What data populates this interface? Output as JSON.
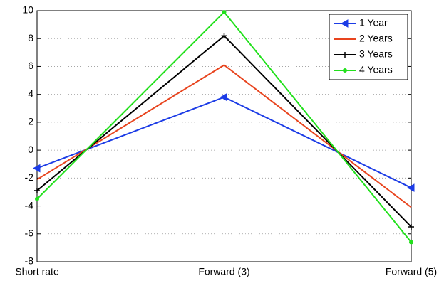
{
  "chart_data": {
    "type": "line",
    "categories": [
      "Short rate",
      "Forward (3)",
      "Forward (5)"
    ],
    "series": [
      {
        "name": "1 Year",
        "color": "#1c3ce6",
        "marker": "triangle-left",
        "values": [
          -1.3,
          3.8,
          -2.7
        ]
      },
      {
        "name": "2 Years",
        "color": "#e8441e",
        "marker": "none",
        "values": [
          -2.1,
          6.1,
          -4.1
        ]
      },
      {
        "name": "3 Years",
        "color": "#000000",
        "marker": "plus",
        "values": [
          -2.9,
          8.2,
          -5.5
        ]
      },
      {
        "name": "4 Years",
        "color": "#22e01c",
        "marker": "dot",
        "values": [
          -3.5,
          9.9,
          -6.6
        ]
      }
    ],
    "ylim": [
      -8,
      10
    ],
    "yticks": [
      -8,
      -6,
      -4,
      -2,
      0,
      2,
      4,
      6,
      8,
      10
    ],
    "grid": true,
    "legend": "top-right"
  }
}
